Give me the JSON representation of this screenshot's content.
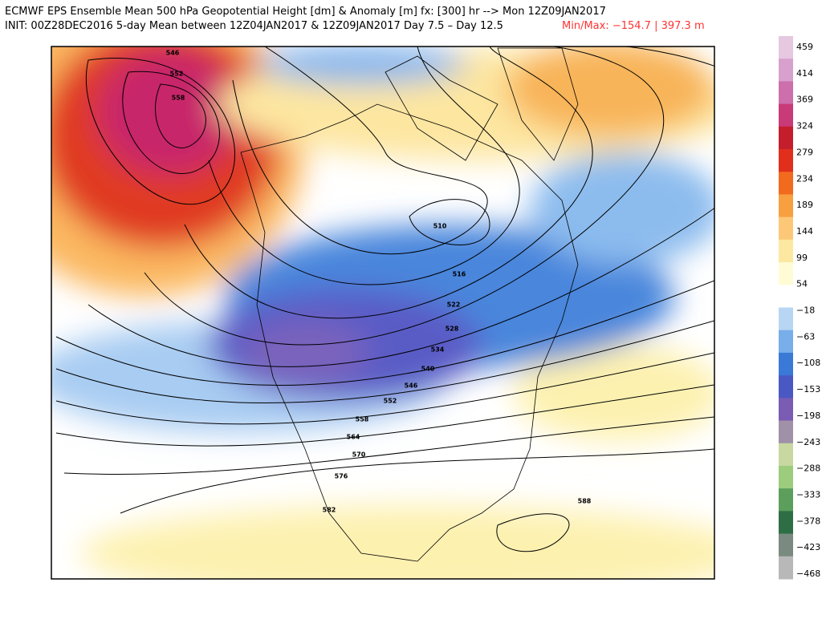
{
  "header": {
    "line1": "ECMWF EPS Ensemble Mean 500 hPa Geopotential Height [dm] & Anomaly [m] fx: [300] hr --> Mon 12Z09JAN2017",
    "line2": "INIT: 00Z28DEC2016 5-day Mean between 12Z04JAN2017 & 12Z09JAN2017   Day 7.5 – Day 12.5",
    "minmax": "Min/Max: −154.7 | 397.3 m"
  },
  "colorbar": {
    "labels": [
      "459",
      "414",
      "369",
      "324",
      "279",
      "234",
      "189",
      "144",
      "99",
      "54",
      "−18",
      "−63",
      "−108",
      "−153",
      "−198",
      "−243",
      "−288",
      "−333",
      "−378",
      "−423",
      "−468"
    ],
    "colors": [
      "#e6c8e0",
      "#d8a0cc",
      "#cc6fac",
      "#c83a78",
      "#c41e2c",
      "#e0301c",
      "#f26a1e",
      "#f8a040",
      "#fcc878",
      "#fce8a0",
      "#fffbd4",
      "#ffffff",
      "#b8d6f4",
      "#78aeea",
      "#3a7ad6",
      "#4a58c4",
      "#7a5cb4",
      "#a090a8",
      "#c8d8a0",
      "#9ccc7c",
      "#5c9e5c",
      "#2e6e44",
      "#7a8a80",
      "#b8b8b8"
    ]
  },
  "contour_labels": [
    "546",
    "552",
    "558",
    "510",
    "516",
    "522",
    "528",
    "534",
    "540",
    "546",
    "552",
    "558",
    "564",
    "570",
    "576",
    "582",
    "588"
  ]
}
